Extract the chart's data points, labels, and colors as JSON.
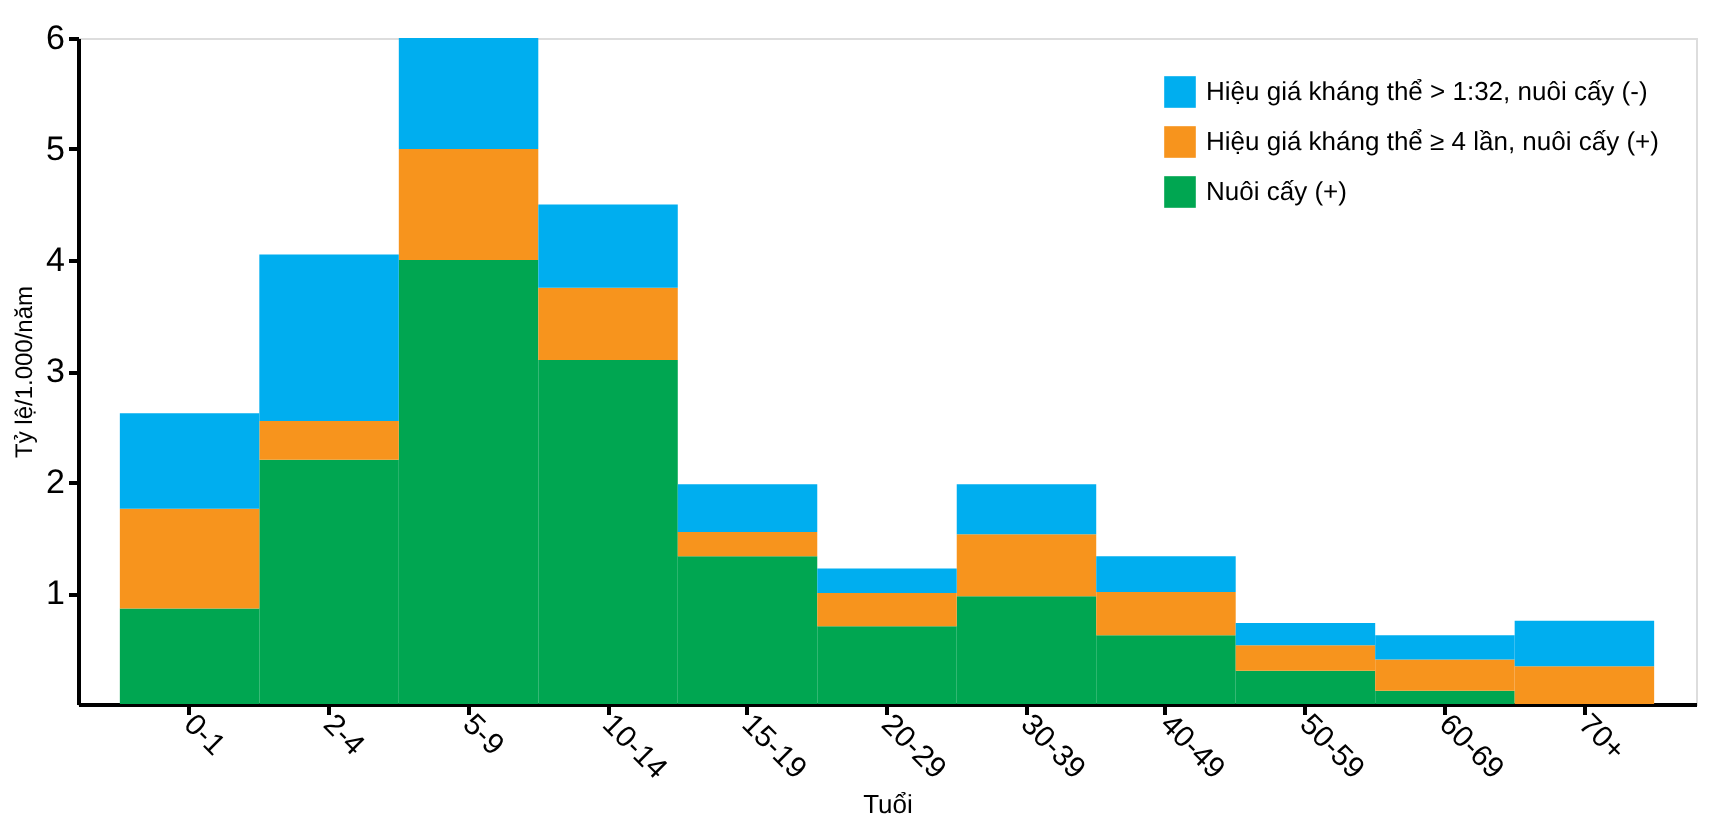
{
  "chart_data": {
    "type": "bar",
    "stacked": true,
    "xlabel": "Tuổi",
    "ylabel": "Tỷ lệ/1.000/năm",
    "categories": [
      "0-1",
      "2-4",
      "5-9",
      "10-14",
      "15-19",
      "20-29",
      "30-39",
      "40-49",
      "50-59",
      "60-69",
      "70+"
    ],
    "series": [
      {
        "name": "Nuôi cấy (+)",
        "color": "#00a651",
        "values": [
          0.86,
          2.2,
          4.0,
          3.1,
          1.33,
          0.7,
          0.97,
          0.62,
          0.3,
          0.12,
          0
        ]
      },
      {
        "name": "Hiệu giá kháng thể ≥ 4 lần, nuôi cấy (+)",
        "color": "#f7941d",
        "values": [
          0.9,
          0.35,
          1.0,
          0.65,
          0.22,
          0.3,
          0.56,
          0.39,
          0.23,
          0.28,
          0.34
        ]
      },
      {
        "name": "Hiệu giá kháng thể > 1:32, nuôi cấy (-)",
        "color": "#00aeef",
        "values": [
          0.86,
          1.5,
          1.0,
          0.75,
          0.43,
          0.22,
          0.45,
          0.32,
          0.2,
          0.22,
          0.41
        ]
      }
    ],
    "ylim": [
      0,
      6
    ],
    "yticks": [
      1,
      2,
      3,
      4,
      5,
      6
    ],
    "grid": false,
    "legend": "top right"
  }
}
